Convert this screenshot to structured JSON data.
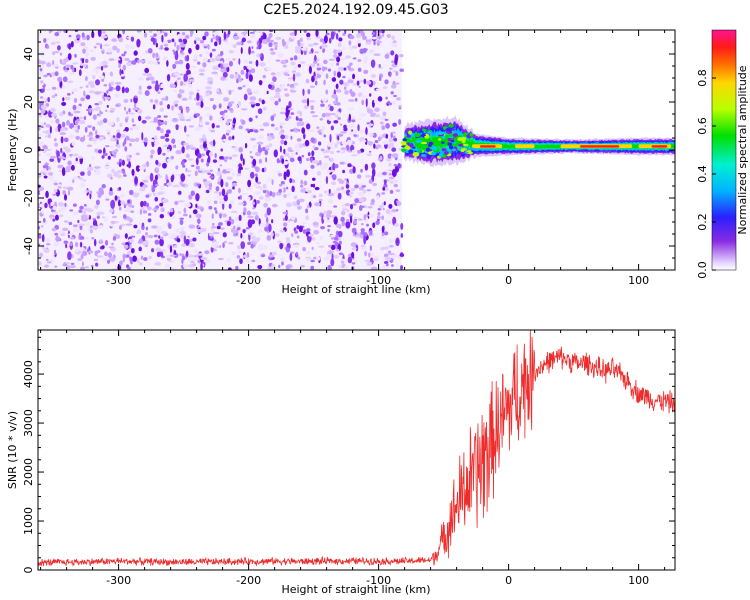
{
  "title": "C2E5.2024.192.09.45.G03",
  "chart_data": [
    {
      "type": "heatmap",
      "title": "",
      "xlabel": "Height of straight line (km)",
      "ylabel": "Frequency (Hz)",
      "xlim": [
        -362,
        128
      ],
      "ylim": [
        -50,
        50
      ],
      "xticks": [
        -300,
        -200,
        -100,
        0,
        100
      ],
      "xtick_labels": [
        "-300",
        "-200",
        "-100",
        "0",
        "100"
      ],
      "yticks": [
        -40,
        -20,
        0,
        20,
        40
      ],
      "ytick_labels": [
        "-40",
        "-20",
        "0",
        "20",
        "40"
      ],
      "noise_region_x": [
        -362,
        -82
      ],
      "signal_band": [
        {
          "x": -80,
          "f_center": 3,
          "f_halfwidth": 3
        },
        {
          "x": -60,
          "f_center": 3,
          "f_halfwidth": 4
        },
        {
          "x": -40,
          "f_center": 4,
          "f_halfwidth": 4
        },
        {
          "x": -25,
          "f_center": 2,
          "f_halfwidth": 2
        },
        {
          "x": 0,
          "f_center": 1.5,
          "f_halfwidth": 1.5
        },
        {
          "x": 50,
          "f_center": 1.5,
          "f_halfwidth": 1.2
        },
        {
          "x": 100,
          "f_center": 1.5,
          "f_halfwidth": 1.5
        },
        {
          "x": 128,
          "f_center": 1.5,
          "f_halfwidth": 1.5
        }
      ],
      "colorbar": {
        "label": "Normalized spectral amplitude",
        "range": [
          0,
          1
        ],
        "ticks": [
          0.0,
          0.2,
          0.4,
          0.6,
          0.8
        ],
        "tick_labels": [
          "0.0",
          "0.2",
          "0.4",
          "0.6",
          "0.8"
        ]
      }
    },
    {
      "type": "line",
      "title": "",
      "xlabel": "Height of straight line (km)",
      "ylabel": "SNR (10 * v/v)",
      "xlim": [
        -362,
        128
      ],
      "ylim": [
        0,
        4900
      ],
      "xticks": [
        -300,
        -200,
        -100,
        0,
        100
      ],
      "xtick_labels": [
        "-300",
        "-200",
        "-100",
        "0",
        "100"
      ],
      "yticks": [
        0,
        1000,
        2000,
        3000,
        4000
      ],
      "ytick_labels": [
        "0",
        "1000",
        "2000",
        "3000",
        "4000"
      ],
      "series": [
        {
          "name": "SNR",
          "color": "#ee2c2c",
          "x": [
            -362,
            -340,
            -320,
            -300,
            -280,
            -260,
            -240,
            -220,
            -200,
            -180,
            -160,
            -140,
            -120,
            -100,
            -80,
            -60,
            -55,
            -50,
            -45,
            -40,
            -35,
            -30,
            -25,
            -20,
            -15,
            -10,
            -5,
            0,
            5,
            10,
            15,
            20,
            25,
            30,
            35,
            40,
            45,
            50,
            55,
            60,
            65,
            70,
            75,
            80,
            85,
            90,
            95,
            100,
            105,
            110,
            115,
            120,
            128
          ],
          "y": [
            150,
            160,
            170,
            180,
            170,
            165,
            160,
            170,
            175,
            180,
            175,
            180,
            185,
            180,
            180,
            200,
            350,
            650,
            1000,
            1300,
            1600,
            1800,
            2000,
            2200,
            2500,
            2800,
            3000,
            3300,
            3550,
            3750,
            3900,
            4050,
            4150,
            4250,
            4300,
            4350,
            4300,
            4250,
            4200,
            4250,
            4150,
            4100,
            4050,
            4100,
            4000,
            3900,
            3750,
            3600,
            3550,
            3500,
            3450,
            3450,
            3400
          ]
        }
      ]
    }
  ]
}
